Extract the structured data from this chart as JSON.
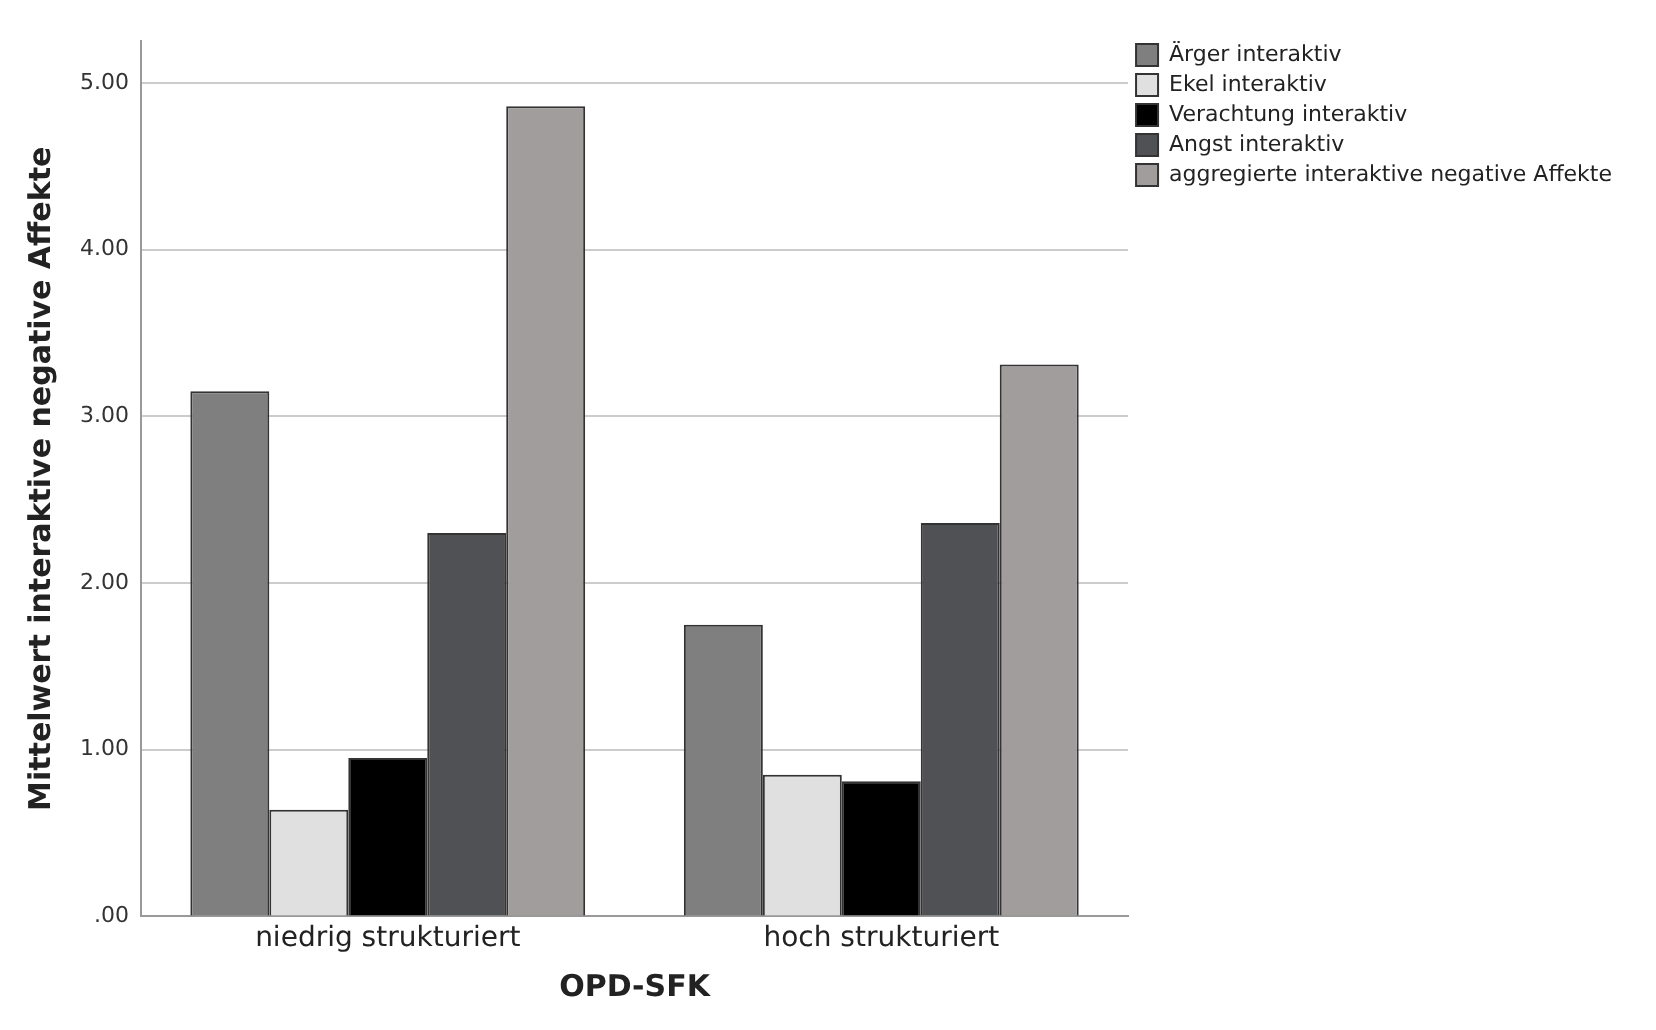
{
  "chart_data": {
    "type": "bar",
    "xlabel": "OPD-SFK",
    "ylabel": "Mittelwert interaktive negative Affekte",
    "categories": [
      "niedrig strukturiert",
      "hoch strukturiert"
    ],
    "series": [
      {
        "name": "Ärger interaktiv",
        "color": "#7f7f7f",
        "values": [
          3.15,
          1.75
        ]
      },
      {
        "name": "Ekel interaktiv",
        "color": "#e0e0e0",
        "values": [
          0.64,
          0.85
        ]
      },
      {
        "name": "Verachtung interaktiv",
        "color": "#000000",
        "values": [
          0.95,
          0.81
        ]
      },
      {
        "name": "Angst interaktiv",
        "color": "#505154",
        "values": [
          2.3,
          2.36
        ]
      },
      {
        "name": "aggregierte interaktive negative Affekte",
        "color": "#a09d9c",
        "values": [
          4.86,
          3.31
        ]
      }
    ],
    "ylim": [
      0,
      5.25
    ],
    "yticks": [
      {
        "value": 0,
        "label": ".00"
      },
      {
        "value": 1,
        "label": "1.00"
      },
      {
        "value": 2,
        "label": "2.00"
      },
      {
        "value": 3,
        "label": "3.00"
      },
      {
        "value": 4,
        "label": "4.00"
      },
      {
        "value": 5,
        "label": "5.00"
      }
    ],
    "grid": "y",
    "legend": "top right"
  }
}
